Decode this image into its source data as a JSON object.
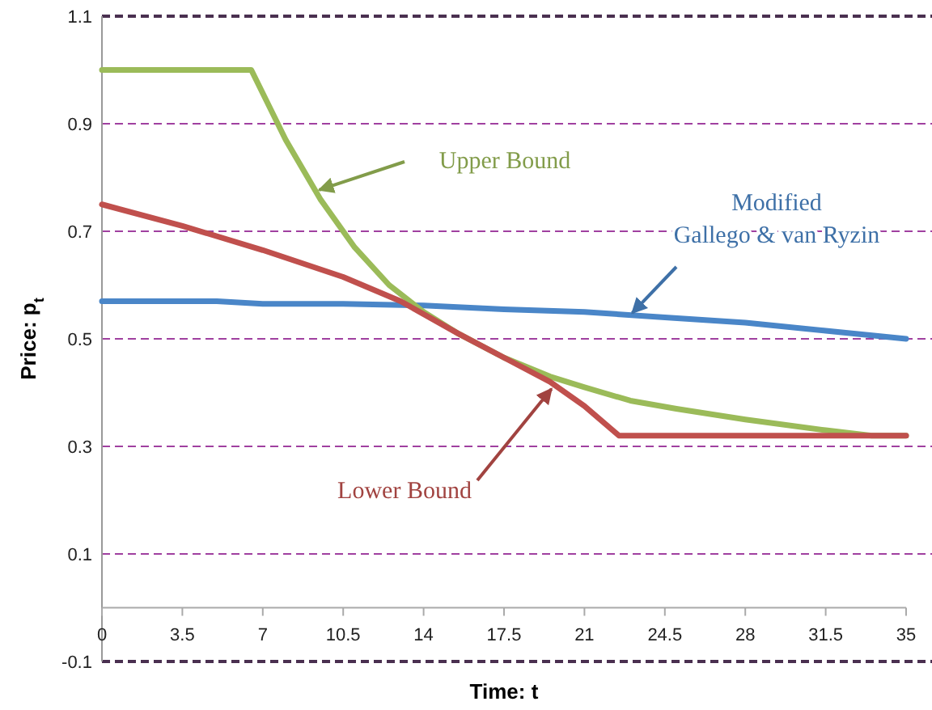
{
  "chart_data": {
    "type": "line",
    "xlabel": "Time: t",
    "ylabel": "Price: p$_{t}$",
    "xlim": [
      0,
      35
    ],
    "xticks": [
      0,
      3.5,
      7,
      10.5,
      14,
      17.5,
      21,
      24.5,
      28,
      31.5,
      35
    ],
    "ylim": [
      -0.1,
      1.1
    ],
    "yticks": [
      -0.1,
      0.1,
      0.3,
      0.5,
      0.7,
      0.9,
      1.1
    ],
    "grid": "y",
    "line_style": "solid",
    "marker": "none",
    "series": [
      {
        "name": "Modified Gallego & van Ryzin",
        "color": "#4a86c8",
        "x": [
          0,
          3.5,
          5,
          7,
          10.5,
          14,
          17.5,
          21,
          24.5,
          28,
          31.5,
          35
        ],
        "values": [
          0.57,
          0.57,
          0.57,
          0.565,
          0.565,
          0.562,
          0.555,
          0.55,
          0.54,
          0.53,
          0.515,
          0.5
        ]
      },
      {
        "name": "Upper Bound",
        "color": "#9bbb59",
        "x": [
          0,
          6.5,
          8,
          9.5,
          11,
          12.5,
          14,
          15.5,
          17.5,
          19.5,
          21,
          23,
          25,
          28,
          31.5,
          33.5,
          35
        ],
        "values": [
          1.0,
          1.0,
          0.87,
          0.76,
          0.67,
          0.6,
          0.55,
          0.51,
          0.465,
          0.43,
          0.41,
          0.385,
          0.37,
          0.35,
          0.33,
          0.32,
          0.32
        ]
      },
      {
        "name": "Lower Bound",
        "color": "#c0504d",
        "x": [
          0,
          3.5,
          7,
          10.5,
          13,
          15.5,
          17.5,
          19.5,
          21,
          22.5,
          35
        ],
        "values": [
          0.75,
          0.71,
          0.665,
          0.615,
          0.57,
          0.51,
          0.465,
          0.42,
          0.375,
          0.32,
          0.32
        ]
      }
    ]
  }
}
